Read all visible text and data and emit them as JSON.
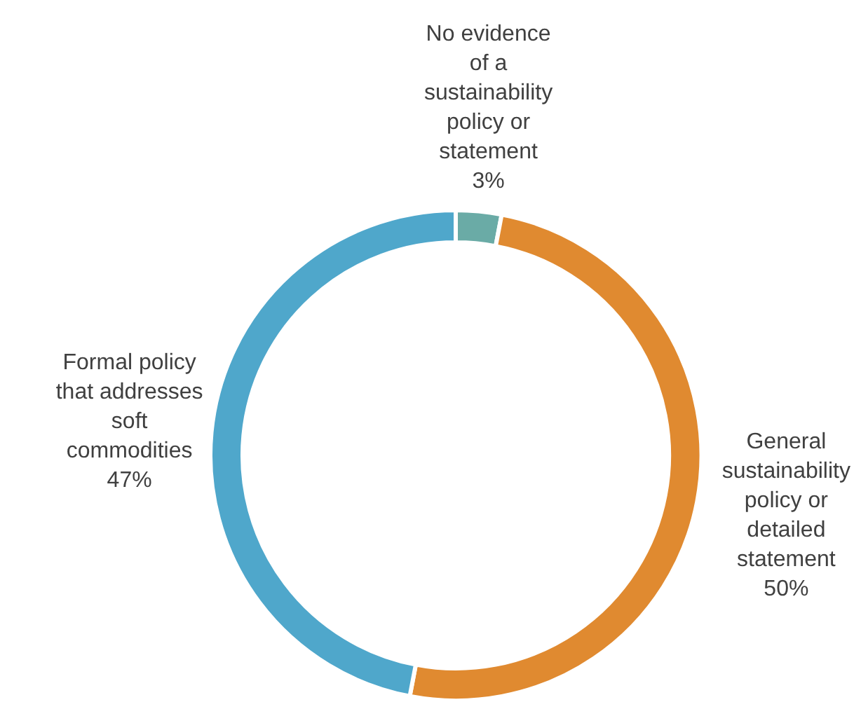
{
  "chart_data": {
    "type": "donut",
    "categories": [
      "No evidence\nof a\nsustainability\npolicy or\nstatement",
      "General\nsustainability\npolicy or\ndetailed\nstatement",
      "Formal policy\nthat addresses\nsoft\ncommodities"
    ],
    "values": [
      3,
      50,
      47
    ],
    "colors": [
      "#6aaba6",
      "#e08a30",
      "#4fa7cb"
    ],
    "value_labels": [
      "3%",
      "50%",
      "47%"
    ]
  }
}
